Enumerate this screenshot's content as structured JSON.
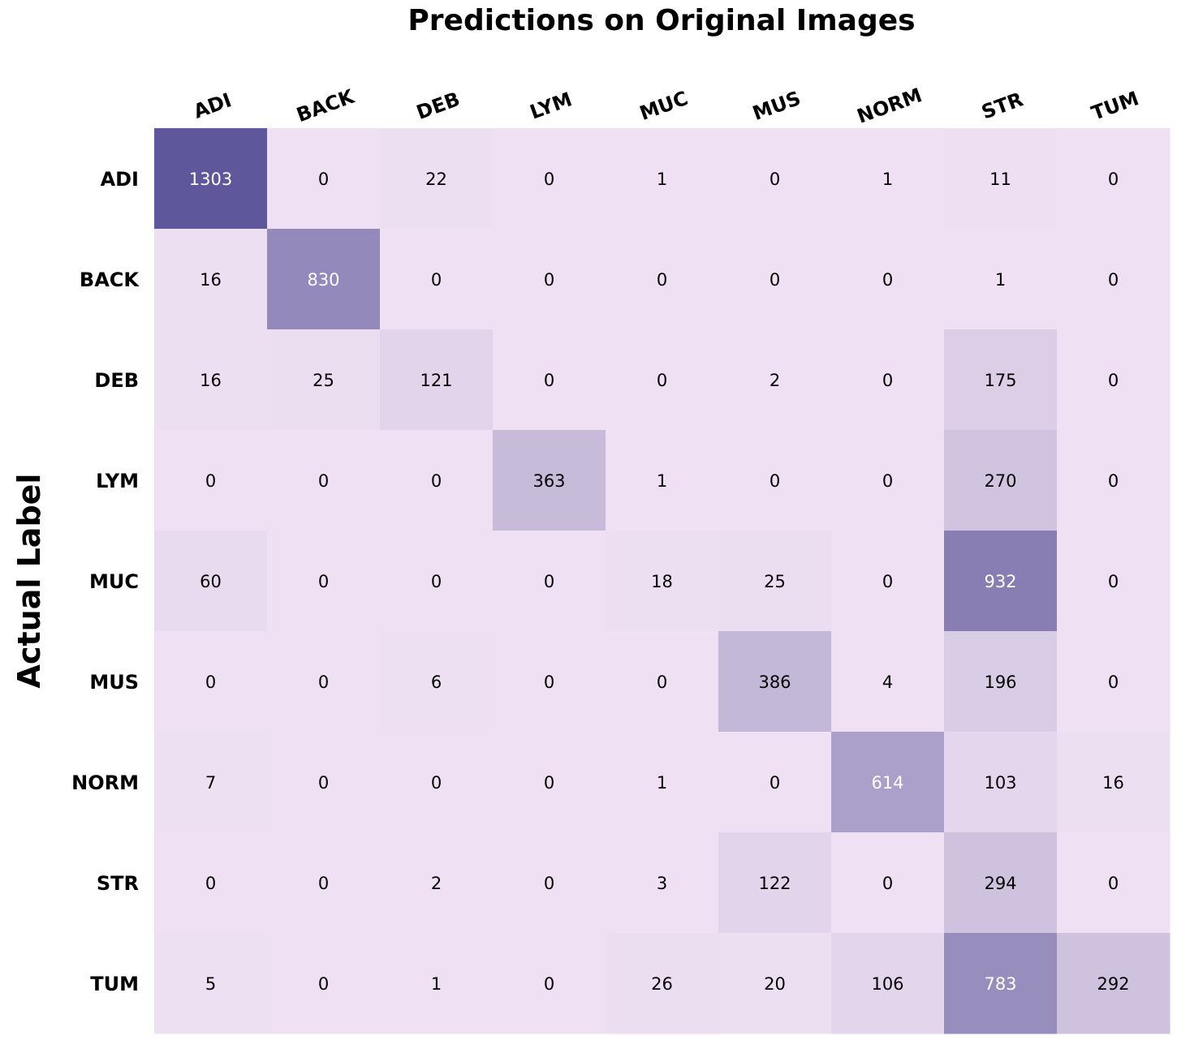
{
  "chart_data": {
    "type": "heatmap",
    "title": "Predictions on Original Images",
    "xlabel": "",
    "ylabel": "Actual Label",
    "columns": [
      "ADI",
      "BACK",
      "DEB",
      "LYM",
      "MUC",
      "MUS",
      "NORM",
      "STR",
      "TUM"
    ],
    "rows": [
      "ADI",
      "BACK",
      "DEB",
      "LYM",
      "MUC",
      "MUS",
      "NORM",
      "STR",
      "TUM"
    ],
    "values": [
      [
        1303,
        0,
        22,
        0,
        1,
        0,
        1,
        11,
        0
      ],
      [
        16,
        830,
        0,
        0,
        0,
        0,
        0,
        1,
        0
      ],
      [
        16,
        25,
        121,
        0,
        0,
        2,
        0,
        175,
        0
      ],
      [
        0,
        0,
        0,
        363,
        1,
        0,
        0,
        270,
        0
      ],
      [
        60,
        0,
        0,
        0,
        18,
        25,
        0,
        932,
        0
      ],
      [
        0,
        0,
        6,
        0,
        0,
        386,
        4,
        196,
        0
      ],
      [
        7,
        0,
        0,
        0,
        1,
        0,
        614,
        103,
        16
      ],
      [
        0,
        0,
        2,
        0,
        3,
        122,
        0,
        294,
        0
      ],
      [
        5,
        0,
        1,
        0,
        26,
        20,
        106,
        783,
        292
      ]
    ],
    "color_scale": {
      "low": "#efe1f3",
      "high": "#5f579b",
      "min": 0,
      "max": 1303
    },
    "grid": false,
    "legend": "none"
  }
}
